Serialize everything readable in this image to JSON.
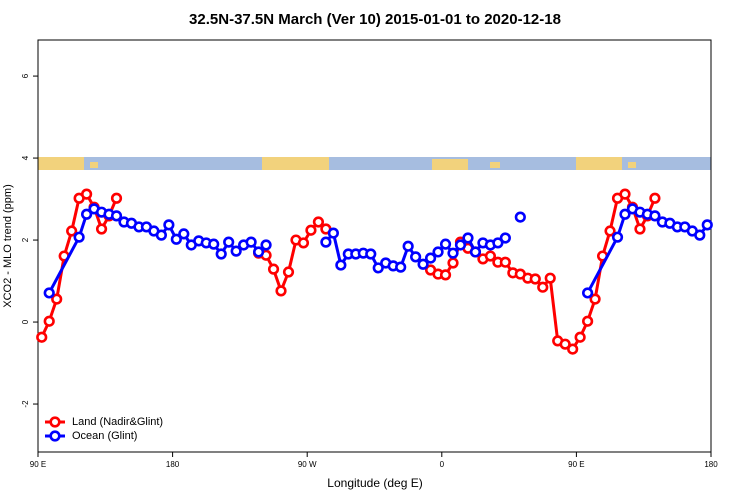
{
  "chart_data": {
    "type": "line",
    "title": "32.5N-37.5N March (Ver 10)   2015-01-01 to 2020-12-18",
    "xlabel": "Longitude (deg E)",
    "ylabel": "XCO2 - MLO trend (ppm)",
    "xlim": [
      90,
      540
    ],
    "ylim": [
      -3.17,
      6.88
    ],
    "xticks": [
      {
        "value": 90,
        "label": "90 E"
      },
      180,
      {
        "value": 270,
        "label": "90 W"
      },
      {
        "value": 360,
        "label": "0"
      },
      {
        "value": 450,
        "label": "90 E"
      },
      {
        "value": 540,
        "label": "180"
      }
    ],
    "yticks": [
      -2,
      0,
      2,
      4,
      6
    ],
    "legend": "bottom-left",
    "series": [
      {
        "name": "Land (Nadir&Glint)",
        "color": "#ff0000",
        "x": [
          92.5,
          97.5,
          102.5,
          107.5,
          112.5,
          117.5,
          122.5,
          127.5,
          132.5,
          137.5,
          142.5,
          null,
          237.5,
          242.5,
          247.5,
          252.5,
          257.5,
          262.5,
          267.5,
          272.5,
          277.5,
          282.5,
          null,
          352.5,
          357.5,
          362.5,
          367.5,
          372.5,
          377.5,
          382.5,
          387.5,
          392.5,
          397.5,
          402.5,
          407.5,
          412.5,
          417.5,
          422.5,
          427.5,
          432.5,
          437.5,
          442.5,
          447.5,
          452.5,
          457.5,
          462.5,
          467.5,
          472.5,
          477.5,
          482.5,
          487.5,
          492.5,
          497.5,
          502.5
        ],
        "values": [
          -0.37,
          0.02,
          0.56,
          1.61,
          2.22,
          3.02,
          3.12,
          2.8,
          2.27,
          2.59,
          3.02,
          null,
          1.68,
          1.63,
          1.29,
          0.76,
          1.22,
          2.0,
          1.93,
          2.24,
          2.44,
          2.27,
          null,
          1.27,
          1.17,
          1.15,
          1.44,
          1.95,
          1.8,
          1.71,
          1.54,
          1.61,
          1.46,
          1.46,
          1.2,
          1.17,
          1.07,
          1.05,
          0.85,
          1.07,
          -0.46,
          -0.54,
          -0.66,
          -0.37,
          0.02,
          0.56,
          1.61,
          2.22,
          3.02,
          3.12,
          2.8,
          2.27,
          2.59,
          3.02
        ]
      },
      {
        "name": "Ocean (Glint)",
        "color": "#0000ff",
        "x": [
          97.5,
          117.5,
          122.5,
          127.5,
          132.5,
          137.5,
          142.5,
          147.5,
          152.5,
          157.5,
          162.5,
          167.5,
          172.5,
          177.5,
          182.5,
          187.5,
          192.5,
          197.5,
          202.5,
          207.5,
          212.5,
          217.5,
          222.5,
          227.5,
          232.5,
          237.5,
          242.5,
          null,
          282.5,
          287.5,
          292.5,
          297.5,
          302.5,
          307.5,
          312.5,
          317.5,
          322.5,
          327.5,
          332.5,
          337.5,
          342.5,
          347.5,
          352.5,
          357.5,
          362.5,
          367.5,
          372.5,
          377.5,
          382.5,
          387.5,
          392.5,
          397.5,
          402.5,
          null,
          412.5,
          null,
          457.5,
          477.5,
          482.5,
          487.5,
          492.5,
          497.5,
          502.5,
          507.5,
          512.5,
          517.5,
          522.5,
          527.5,
          532.5,
          537.5
        ],
        "values": [
          0.71,
          2.07,
          2.63,
          2.76,
          2.68,
          2.63,
          2.59,
          2.44,
          2.41,
          2.32,
          2.32,
          2.22,
          2.12,
          2.37,
          2.02,
          2.15,
          1.88,
          1.98,
          1.93,
          1.9,
          1.66,
          1.95,
          1.73,
          1.88,
          1.95,
          1.71,
          1.88,
          null,
          1.95,
          2.17,
          1.39,
          1.66,
          1.66,
          1.68,
          1.66,
          1.32,
          1.44,
          1.37,
          1.34,
          1.85,
          1.59,
          1.41,
          1.56,
          1.71,
          1.9,
          1.68,
          1.88,
          2.05,
          1.71,
          1.93,
          1.88,
          1.93,
          2.05,
          null,
          2.56,
          null,
          0.71,
          2.07,
          2.63,
          2.76,
          2.68,
          2.63,
          2.59,
          2.44,
          2.41,
          2.32,
          2.32,
          2.22,
          2.12,
          2.37
        ]
      }
    ]
  }
}
